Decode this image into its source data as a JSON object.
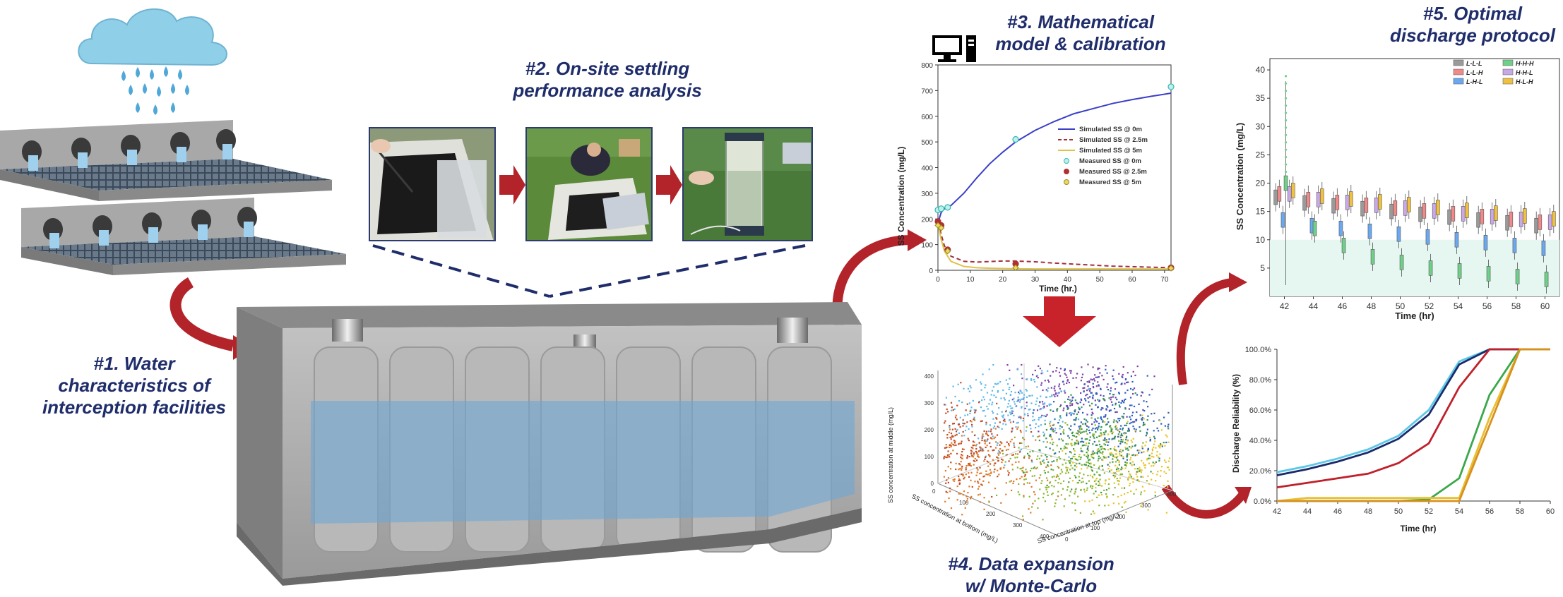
{
  "steps": {
    "s1": {
      "line1": "#1. Water",
      "line2": "characteristics of",
      "line3": "interception facilities"
    },
    "s2": {
      "line1": "#2. On-site settling",
      "line2": "performance analysis"
    },
    "s3": {
      "line1": "#3. Mathematical",
      "line2": "model & calibration"
    },
    "s4": {
      "line1": "#4. Data expansion",
      "line2": "w/ Monte-Carlo"
    },
    "s5": {
      "line1": "#5. Optimal",
      "line2": "discharge protocol"
    }
  },
  "colors": {
    "title": "#1f2d6b",
    "arrow": "#b3232a",
    "water": "#8fb8d8",
    "concrete": "#9a9a9a"
  },
  "chart_data": [
    {
      "type": "line",
      "name": "model-calibration",
      "xlabel": "Time (hr.)",
      "ylabel": "SS Concentration (mg/L)",
      "xlim": [
        0,
        72
      ],
      "ylim": [
        0,
        800
      ],
      "xticks": [
        0,
        10,
        20,
        30,
        40,
        50,
        60,
        70
      ],
      "yticks": [
        0,
        100,
        200,
        300,
        400,
        500,
        600,
        700,
        800
      ],
      "legend_position": "right",
      "series": [
        {
          "name": "Simulated SS @ 0m",
          "kind": "line",
          "color": "#3a3fc8",
          "x": [
            0,
            1,
            2,
            4,
            8,
            12,
            16,
            20,
            24,
            30,
            36,
            42,
            48,
            54,
            60,
            66,
            72
          ],
          "y": [
            185,
            225,
            240,
            252,
            300,
            360,
            415,
            460,
            500,
            545,
            580,
            610,
            630,
            650,
            665,
            678,
            690
          ]
        },
        {
          "name": "Simulated SS @ 2.5m",
          "kind": "dashed",
          "color": "#a0303a",
          "x": [
            0,
            1,
            2,
            4,
            8,
            12,
            16,
            20,
            24,
            30,
            36,
            42,
            48,
            54,
            60,
            66,
            72
          ],
          "y": [
            185,
            140,
            95,
            55,
            35,
            32,
            34,
            36,
            36,
            33,
            28,
            24,
            20,
            16,
            14,
            12,
            10
          ]
        },
        {
          "name": "Simulated SS @ 5m",
          "kind": "line",
          "color": "#e0c24a",
          "x": [
            0,
            1,
            2,
            4,
            8,
            12,
            16,
            20,
            24,
            30,
            36,
            42,
            48,
            54,
            60,
            66,
            72
          ],
          "y": [
            180,
            120,
            75,
            35,
            15,
            10,
            8,
            7,
            6,
            5,
            5,
            5,
            5,
            5,
            5,
            5,
            5
          ]
        },
        {
          "name": "Measured SS @ 0m",
          "kind": "marker",
          "color": "#30b8b0",
          "x": [
            0,
            1,
            3,
            24,
            72
          ],
          "y": [
            235,
            240,
            245,
            510,
            715
          ]
        },
        {
          "name": "Measured SS @ 2.5m",
          "kind": "marker",
          "color": "#b03030",
          "x": [
            0,
            1,
            3,
            24,
            72
          ],
          "y": [
            190,
            175,
            80,
            25,
            10
          ]
        },
        {
          "name": "Measured SS @ 5m",
          "kind": "marker",
          "color": "#9a8a20",
          "x": [
            0,
            1,
            3,
            24,
            72
          ],
          "y": [
            175,
            165,
            75,
            10,
            8
          ]
        }
      ]
    },
    {
      "type": "scatter",
      "name": "monte-carlo",
      "xlabel": "SS concentration at top (mg/L)",
      "ylabel": "SS concentration at middle (mg/L)",
      "zlabel": "SS concentration at bottom (mg/L)",
      "zticks": [
        0,
        100,
        200,
        300,
        400
      ],
      "xticks": [
        0,
        100,
        200,
        300,
        400
      ],
      "yticks": [
        0,
        100,
        200,
        300,
        400
      ],
      "clusters": [
        "#7b3fa8",
        "#2a5fc0",
        "#5fb8e8",
        "#e07a2a",
        "#8ab830",
        "#e8c42a",
        "#c04a2a",
        "#3a9a4a"
      ]
    },
    {
      "type": "box",
      "name": "ss-boxplot",
      "xlabel": "Time (hr)",
      "ylabel": "SS Concentration (mg/L)",
      "xlim": [
        41,
        61
      ],
      "ylim": [
        0,
        42
      ],
      "xticks": [
        42,
        44,
        46,
        48,
        50,
        52,
        54,
        56,
        58,
        60
      ],
      "yticks": [
        5,
        10,
        15,
        20,
        25,
        30,
        35,
        40
      ],
      "legend_position": "top-right",
      "legend": [
        {
          "name": "L-L-L",
          "color": "#9a9a9a"
        },
        {
          "name": "H-H-H",
          "color": "#6fd08a"
        },
        {
          "name": "L-L-H",
          "color": "#f08a8a"
        },
        {
          "name": "H-H-L",
          "color": "#c9a8e8"
        },
        {
          "name": "L-H-L",
          "color": "#6aa8f0"
        },
        {
          "name": "H-L-H",
          "color": "#f0c040"
        }
      ],
      "medians": {
        "L-L-L": [
          17.5,
          16.5,
          16,
          15.5,
          15,
          14.5,
          14,
          13.5,
          13,
          12.5
        ],
        "H-H-H": [
          20,
          12,
          9,
          7,
          6,
          5,
          4.5,
          4,
          3.5,
          3
        ]
      }
    },
    {
      "type": "line",
      "name": "discharge-reliability",
      "xlabel": "Time (hr)",
      "ylabel": "Discharge Reliability (%)",
      "xlim": [
        42,
        60
      ],
      "ylim": [
        0,
        100
      ],
      "xticks": [
        42,
        44,
        46,
        48,
        50,
        52,
        54,
        56,
        58,
        60
      ],
      "yticks": [
        "0.0%",
        "20.0%",
        "40.0%",
        "60.0%",
        "80.0%",
        "100.0%"
      ],
      "series": [
        {
          "color": "#5bc8e8",
          "x": [
            42,
            44,
            46,
            48,
            50,
            52,
            54,
            56,
            58,
            60
          ],
          "y": [
            19,
            23,
            28,
            34,
            43,
            60,
            92,
            100,
            100,
            100
          ]
        },
        {
          "color": "#1a2a6a",
          "x": [
            42,
            44,
            46,
            48,
            50,
            52,
            54,
            56,
            58,
            60
          ],
          "y": [
            17,
            21,
            26,
            32,
            41,
            57,
            90,
            100,
            100,
            100
          ]
        },
        {
          "color": "#c0202a",
          "x": [
            42,
            44,
            46,
            48,
            50,
            52,
            54,
            56,
            58,
            60
          ],
          "y": [
            9,
            12,
            15,
            18,
            25,
            38,
            75,
            100,
            100,
            100
          ]
        },
        {
          "color": "#3aa84a",
          "x": [
            42,
            44,
            46,
            48,
            50,
            52,
            54,
            56,
            58,
            60
          ],
          "y": [
            0,
            0,
            0,
            0,
            0,
            1,
            15,
            70,
            100,
            100
          ]
        },
        {
          "color": "#e8c030",
          "x": [
            42,
            44,
            46,
            48,
            50,
            52,
            54,
            56,
            58,
            60
          ],
          "y": [
            0,
            2,
            2,
            2,
            2,
            2,
            2,
            55,
            100,
            100
          ]
        },
        {
          "color": "#d89020",
          "x": [
            42,
            44,
            46,
            48,
            50,
            52,
            54,
            56,
            58,
            60
          ],
          "y": [
            0,
            0,
            0,
            0,
            0,
            0,
            0,
            50,
            100,
            100
          ]
        }
      ]
    }
  ]
}
